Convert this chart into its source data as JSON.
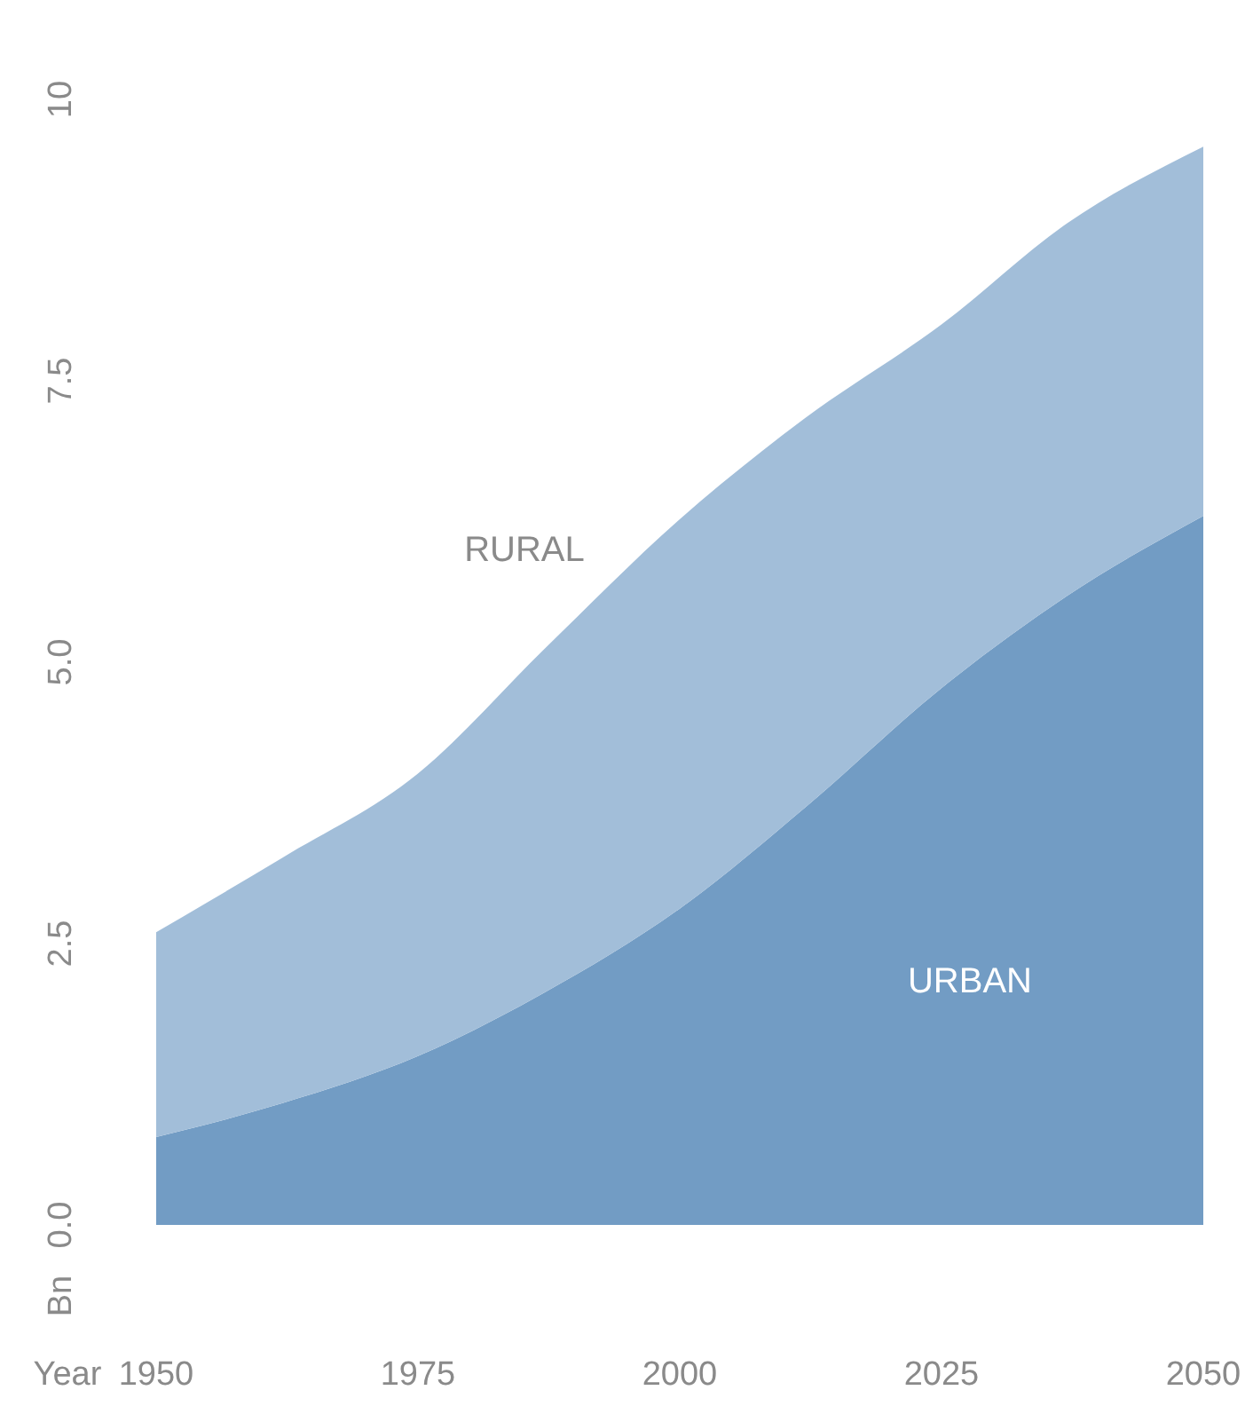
{
  "chart_data": {
    "type": "area",
    "stacked": true,
    "xlabel": "Year",
    "ylabel": "Bn",
    "x": [
      1950,
      1962,
      1975,
      1987,
      2000,
      2012,
      2025,
      2037,
      2050
    ],
    "xlim": [
      1950,
      2050
    ],
    "xticks": [
      1950,
      1975,
      2000,
      2025,
      2050
    ],
    "ylim": [
      0,
      10
    ],
    "yticks": [
      {
        "value": 0,
        "label": "0.0"
      },
      2.5,
      {
        "value": 5,
        "label": "5.0"
      },
      7.5,
      10
    ],
    "grid": false,
    "legend": false,
    "series": [
      {
        "name": "URBAN",
        "color": "#729cc4",
        "values": [
          0.78,
          1.08,
          1.5,
          2.06,
          2.81,
          3.71,
          4.77,
          5.59,
          6.3
        ]
      },
      {
        "name": "RURAL",
        "color": "#a2bed9",
        "values": [
          1.82,
          2.18,
          2.51,
          3.05,
          3.46,
          3.46,
          3.23,
          3.31,
          3.28
        ]
      }
    ]
  }
}
